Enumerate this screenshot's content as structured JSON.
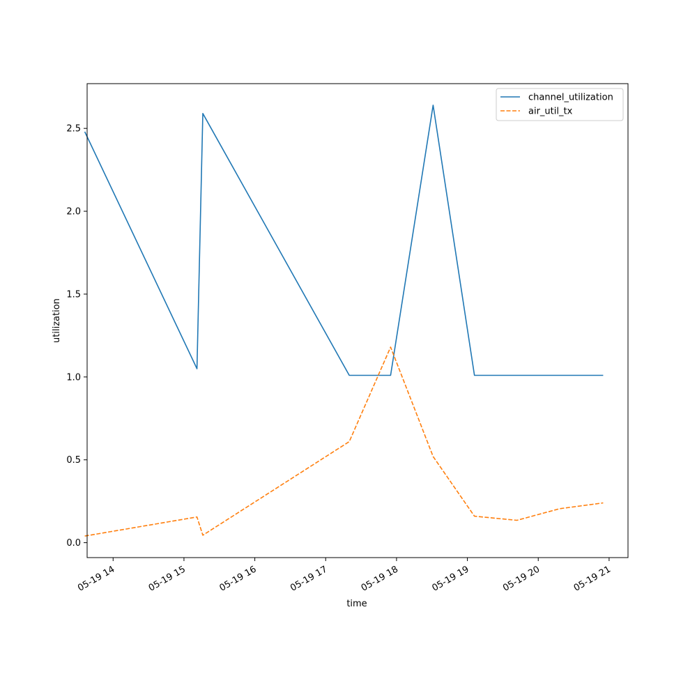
{
  "chart_data": {
    "type": "line",
    "title": "",
    "xlabel": "time",
    "ylabel": "utilization",
    "x_ticks": [
      "05-19 14",
      "05-19 15",
      "05-19 16",
      "05-19 17",
      "05-19 18",
      "05-19 19",
      "05-19 20",
      "05-19 21"
    ],
    "y_ticks": [
      "0.0",
      "0.5",
      "1.0",
      "1.5",
      "2.0",
      "2.5"
    ],
    "xlim": [
      "2024-05-19 13:38",
      "2024-05-19 21:16"
    ],
    "ylim": [
      -0.09,
      2.77
    ],
    "grid": false,
    "legend_position": "top-right",
    "series": [
      {
        "name": "channel_utilization",
        "color": "#1f77b4",
        "style": "solid",
        "x": [
          "2024-05-19 13:36",
          "2024-05-19 15:11",
          "2024-05-19 15:16",
          "2024-05-19 17:20",
          "2024-05-19 17:55",
          "2024-05-19 18:31",
          "2024-05-19 19:06",
          "2024-05-19 20:55"
        ],
        "y": [
          2.48,
          1.05,
          2.59,
          1.01,
          1.01,
          2.64,
          1.01,
          1.01
        ]
      },
      {
        "name": "air_util_tx",
        "color": "#ff7f0e",
        "style": "dashed",
        "x": [
          "2024-05-19 13:36",
          "2024-05-19 15:11",
          "2024-05-19 15:16",
          "2024-05-19 17:20",
          "2024-05-19 17:55",
          "2024-05-19 18:31",
          "2024-05-19 19:06",
          "2024-05-19 19:42",
          "2024-05-19 20:18",
          "2024-05-19 20:55"
        ],
        "y": [
          0.04,
          0.155,
          0.045,
          0.61,
          1.18,
          0.52,
          0.16,
          0.135,
          0.205,
          0.24
        ]
      }
    ]
  }
}
